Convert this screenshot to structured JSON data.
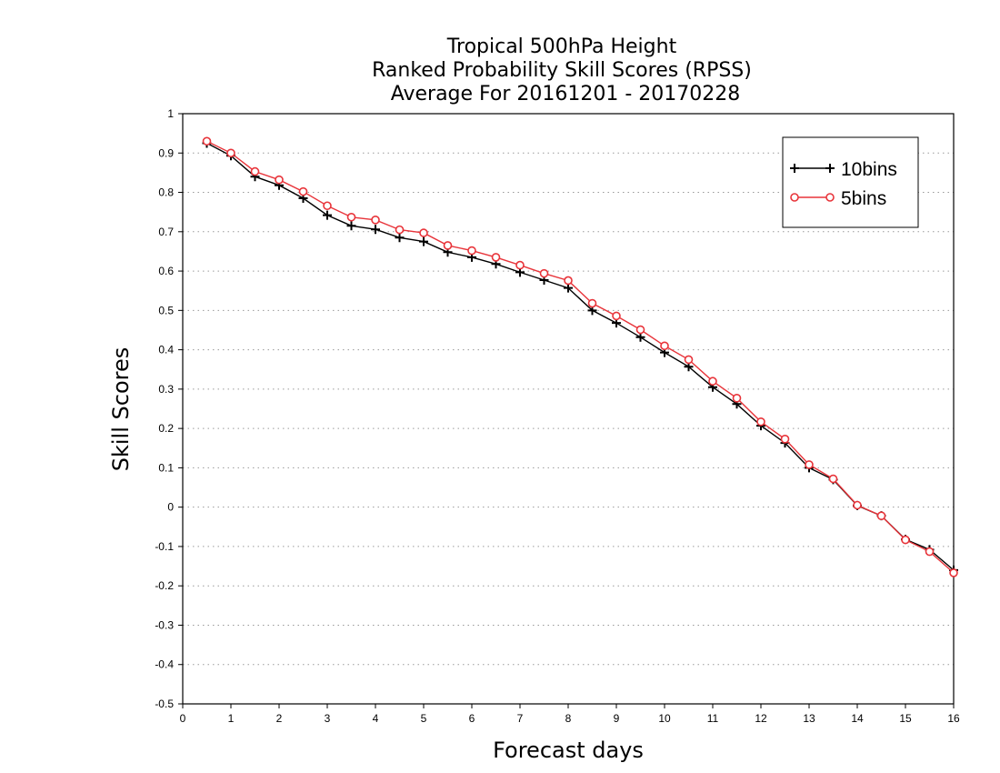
{
  "chart_data": {
    "type": "line",
    "title": [
      "Tropical 500hPa Height",
      "Ranked Probability Skill Scores (RPSS)",
      "Average For 20161201 - 20170228"
    ],
    "xlabel": "Forecast days",
    "ylabel": "Skill Scores",
    "xlim": [
      0,
      16
    ],
    "ylim": [
      -0.5,
      1
    ],
    "xticks": [
      "0",
      "1",
      "2",
      "3",
      "4",
      "5",
      "6",
      "7",
      "8",
      "9",
      "10",
      "11",
      "12",
      "13",
      "14",
      "15",
      "16"
    ],
    "yticks": [
      "-0.5",
      "-0.4",
      "-0.3",
      "-0.2",
      "-0.1",
      "0",
      "0.1",
      "0.2",
      "0.3",
      "0.4",
      "0.5",
      "0.6",
      "0.7",
      "0.8",
      "0.9",
      "1"
    ],
    "grid": true,
    "legend_position": "top-right",
    "x": [
      0.5,
      1,
      1.5,
      2,
      2.5,
      3,
      3.5,
      4,
      4.5,
      5,
      5.5,
      6,
      6.5,
      7,
      7.5,
      8,
      8.5,
      9,
      9.5,
      10,
      10.5,
      11,
      11.5,
      12,
      12.5,
      13,
      13.5,
      14,
      14.5,
      15,
      15.5,
      16
    ],
    "series": [
      {
        "name": "10bins",
        "color": "#000000",
        "marker": "plus",
        "values": [
          0.925,
          0.893,
          0.84,
          0.818,
          0.785,
          0.742,
          0.715,
          0.706,
          0.685,
          0.675,
          0.648,
          0.635,
          0.618,
          0.597,
          0.577,
          0.557,
          0.5,
          0.468,
          0.432,
          0.393,
          0.357,
          0.305,
          0.262,
          0.207,
          0.163,
          0.1,
          0.07,
          0.004,
          -0.022,
          -0.082,
          -0.108,
          -0.16
        ]
      },
      {
        "name": "5bins",
        "color": "#e8343a",
        "marker": "circle",
        "values": [
          0.93,
          0.9,
          0.853,
          0.832,
          0.802,
          0.766,
          0.737,
          0.73,
          0.705,
          0.697,
          0.665,
          0.652,
          0.635,
          0.615,
          0.594,
          0.576,
          0.518,
          0.486,
          0.451,
          0.41,
          0.375,
          0.32,
          0.277,
          0.217,
          0.173,
          0.108,
          0.072,
          0.005,
          -0.022,
          -0.083,
          -0.113,
          -0.167
        ]
      }
    ]
  }
}
